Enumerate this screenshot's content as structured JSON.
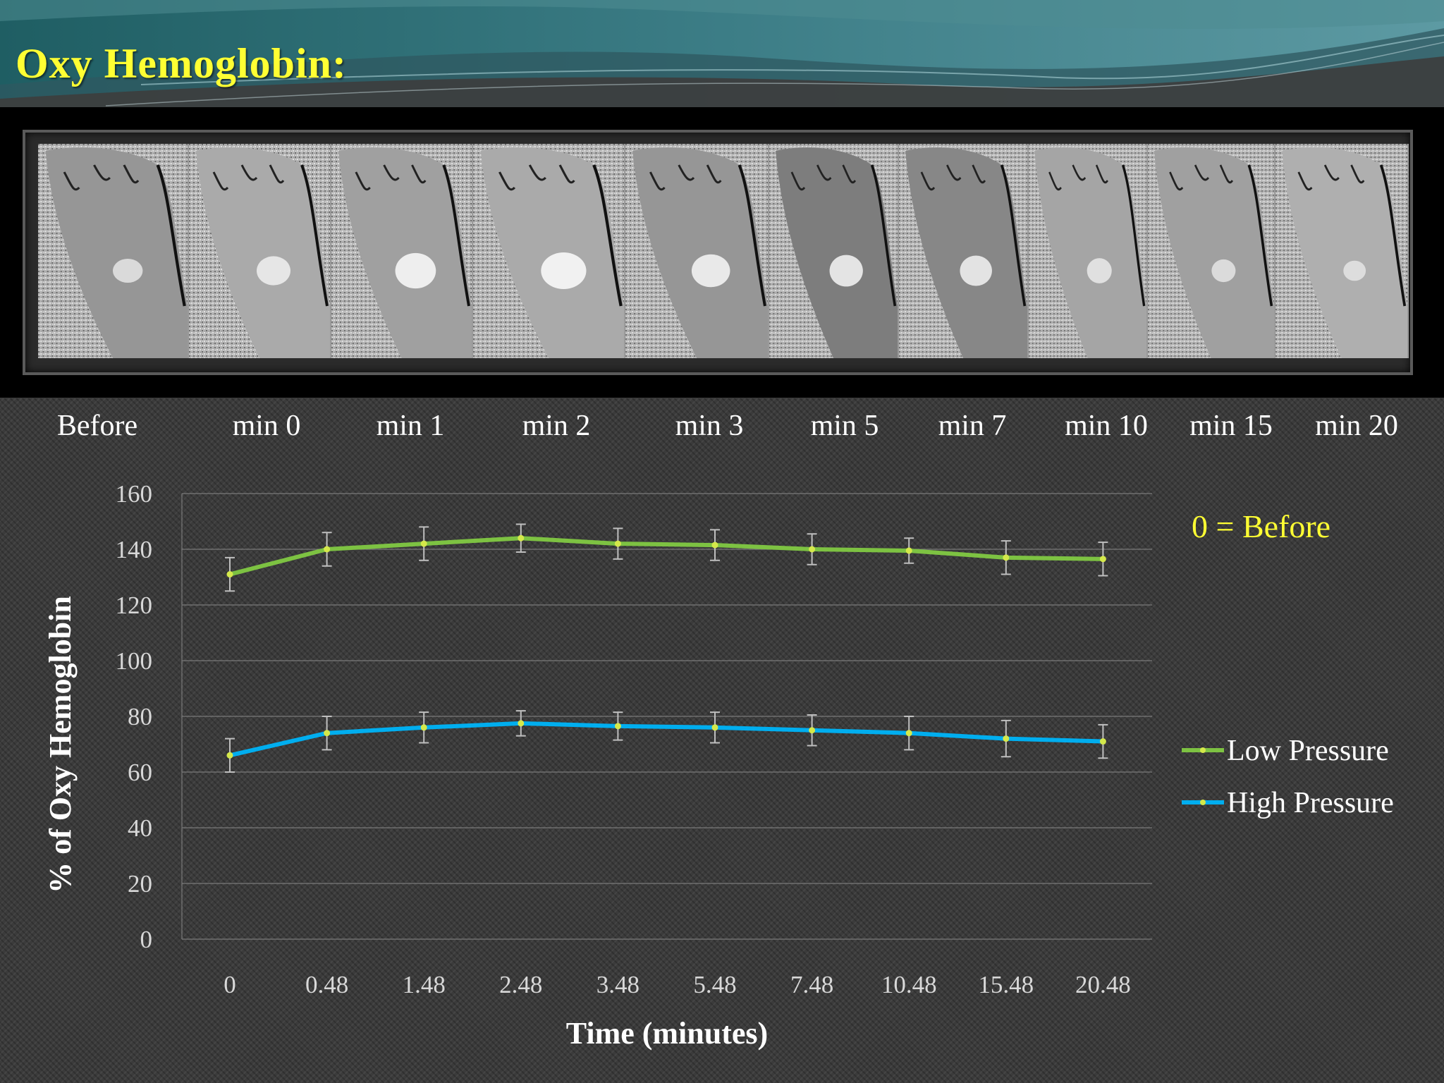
{
  "slide": {
    "title": "Oxy Hemoglobin:",
    "timepoint_labels": [
      "Before",
      "min 0",
      "min 1",
      "min 2",
      "min 3",
      "min 5",
      "min 7",
      "min 10",
      "min 15",
      "min 20"
    ],
    "note": "0 = Before"
  },
  "colors": {
    "title": "#ffff33",
    "low_pressure": "#7dc242",
    "high_pressure": "#00aeef",
    "marker": "#d4e84a",
    "error_bar": "#bfbfbf"
  },
  "chart_data": {
    "type": "line",
    "title": "",
    "xlabel": "Time (minutes)",
    "ylabel": "% of Oxy Hemoglobin",
    "x": [
      "0",
      "0.48",
      "1.48",
      "2.48",
      "3.48",
      "5.48",
      "7.48",
      "10.48",
      "15.48",
      "20.48"
    ],
    "ylim": [
      0,
      160
    ],
    "yticks": [
      0,
      20,
      40,
      60,
      80,
      100,
      120,
      140,
      160
    ],
    "grid": true,
    "legend_position": "right",
    "series": [
      {
        "name": "Low Pressure",
        "values": [
          131,
          140,
          142,
          144,
          142,
          141.5,
          140,
          139.5,
          137,
          136.5
        ],
        "error": [
          6,
          6,
          6,
          5,
          5.5,
          5.5,
          5.5,
          4.5,
          6,
          6
        ]
      },
      {
        "name": "High Pressure",
        "values": [
          66,
          74,
          76,
          77.5,
          76.5,
          76,
          75,
          74,
          72,
          71
        ],
        "error": [
          6,
          6,
          5.5,
          4.5,
          5,
          5.5,
          5.5,
          6,
          6.5,
          6
        ]
      }
    ]
  }
}
